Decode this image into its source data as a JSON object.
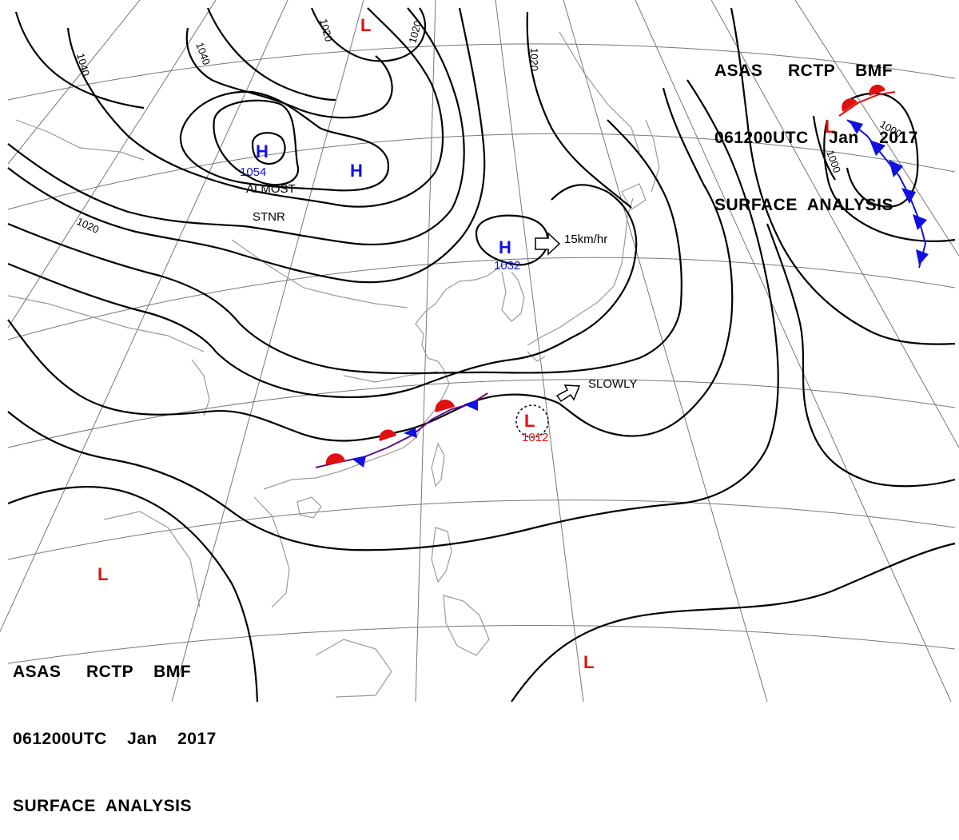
{
  "header_top": {
    "line1": "ASAS     RCTP    BMF",
    "line2": "061200UTC    Jan    2017",
    "line3": "SURFACE  ANALYSIS"
  },
  "header_bottom": {
    "line1": "ASAS     RCTP    BMF",
    "line2": "061200UTC    Jan    2017",
    "line3": "SURFACE  ANALYSIS"
  },
  "colors": {
    "isobar": "#000000",
    "high": "#1010e0",
    "low": "#e01010",
    "coast": "#9a9a9a",
    "grid": "#777777"
  },
  "pressure_centers": [
    {
      "type": "H",
      "label": "H",
      "value": "1054",
      "note_line1": "ALMOST",
      "note_line2": "STNR"
    },
    {
      "type": "H",
      "label": "H",
      "value": ""
    },
    {
      "type": "H",
      "label": "H",
      "value": "1032",
      "motion": "15km/hr"
    },
    {
      "type": "L",
      "label": "L",
      "value": "1012",
      "motion": "SLOWLY"
    },
    {
      "type": "L",
      "label": "L",
      "value": ""
    },
    {
      "type": "L",
      "label": "L",
      "value": ""
    },
    {
      "type": "L",
      "label": "L",
      "value": ""
    },
    {
      "type": "L",
      "label": "L",
      "value": ""
    }
  ],
  "isobar_labels": [
    "1020",
    "1020",
    "1040",
    "1040",
    "1020",
    "1020",
    "1000",
    "1000"
  ],
  "fronts": [
    {
      "type": "stationary",
      "location": "South China"
    },
    {
      "type": "cold",
      "location": "Northwest Pacific"
    },
    {
      "type": "warm",
      "location": "Northwest Pacific"
    }
  ]
}
